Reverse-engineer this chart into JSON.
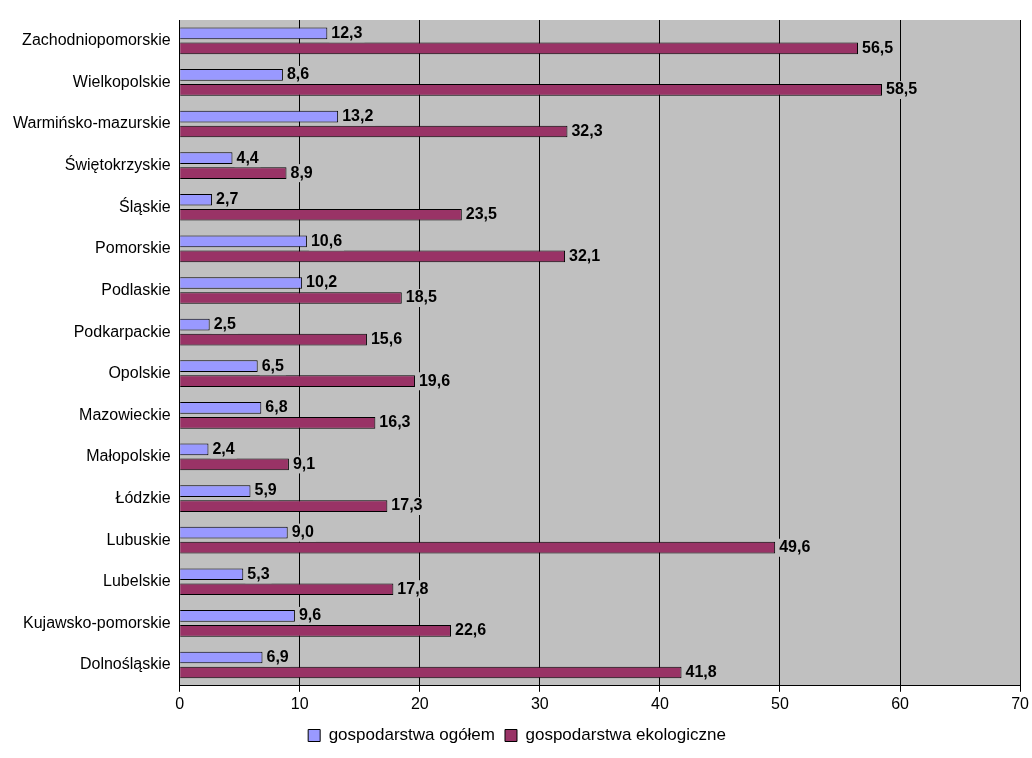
{
  "chart_data": {
    "type": "bar",
    "orientation": "horizontal",
    "categories": [
      "Zachodniopomorskie",
      "Wielkopolskie",
      "Warmińsko-mazurskie",
      "Świętokrzyskie",
      "Śląskie",
      "Pomorskie",
      "Podlaskie",
      "Podkarpackie",
      "Opolskie",
      "Mazowieckie",
      "Małopolskie",
      "Łódzkie",
      "Lubuskie",
      "Lubelskie",
      "Kujawsko-pomorskie",
      "Dolnośląskie"
    ],
    "series": [
      {
        "name": "gospodarstwa ogółem",
        "color": "#9999ff",
        "values": [
          12.3,
          8.6,
          13.2,
          4.4,
          2.7,
          10.6,
          10.2,
          2.5,
          6.5,
          6.8,
          2.4,
          5.9,
          9.0,
          5.3,
          9.6,
          6.9
        ],
        "value_labels": [
          "12,3",
          "8,6",
          "13,2",
          "4,4",
          "2,7",
          "10,6",
          "10,2",
          "2,5",
          "6,5",
          "6,8",
          "2,4",
          "5,9",
          "9,0",
          "5,3",
          "9,6",
          "6,9"
        ]
      },
      {
        "name": "gospodarstwa ekologiczne",
        "color": "#993366",
        "values": [
          56.5,
          58.5,
          32.3,
          8.9,
          23.5,
          32.1,
          18.5,
          15.6,
          19.6,
          16.3,
          9.1,
          17.3,
          49.6,
          17.8,
          22.6,
          41.8
        ],
        "value_labels": [
          "56,5",
          "58,5",
          "32,3",
          "8,9",
          "23,5",
          "32,1",
          "18,5",
          "15,6",
          "19,6",
          "16,3",
          "9,1",
          "17,3",
          "49,6",
          "17,8",
          "22,6",
          "41,8"
        ]
      }
    ],
    "xlim": [
      0,
      70
    ],
    "xticks": [
      0,
      10,
      20,
      30,
      40,
      50,
      60,
      70
    ],
    "grid": "x",
    "legend": "bottom"
  }
}
